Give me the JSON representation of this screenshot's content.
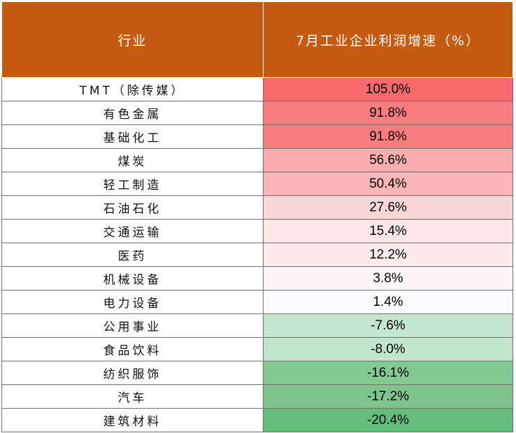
{
  "table": {
    "headers": [
      "行业",
      "7月工业企业利润增速（%）"
    ],
    "rows": [
      {
        "industry": "TMT（除传媒）",
        "value": "105.0%",
        "color": "#f8696b"
      },
      {
        "industry": "有色金属",
        "value": "91.8%",
        "color": "#f97c7f"
      },
      {
        "industry": "基础化工",
        "value": "91.8%",
        "color": "#f97c7f"
      },
      {
        "industry": "煤炭",
        "value": "56.6%",
        "color": "#faadaf"
      },
      {
        "industry": "轻工制造",
        "value": "50.4%",
        "color": "#fbb5b7"
      },
      {
        "industry": "石油石化",
        "value": "27.6%",
        "color": "#fcd5d6"
      },
      {
        "industry": "交通运输",
        "value": "15.4%",
        "color": "#fde6e7"
      },
      {
        "industry": "医药",
        "value": "12.2%",
        "color": "#fdeaeb"
      },
      {
        "industry": "机械设备",
        "value": "3.8%",
        "color": "#fcf6f9"
      },
      {
        "industry": "电力设备",
        "value": "1.4%",
        "color": "#fcfcff"
      },
      {
        "industry": "公用事业",
        "value": "-7.6%",
        "color": "#c5e6ce"
      },
      {
        "industry": "食品饮料",
        "value": "-8.0%",
        "color": "#c3e5cb"
      },
      {
        "industry": "纺织服饰",
        "value": "-16.1%",
        "color": "#83c994"
      },
      {
        "industry": "汽车",
        "value": "-17.2%",
        "color": "#7cc68e"
      },
      {
        "industry": "建筑材料",
        "value": "-20.4%",
        "color": "#63be7b"
      }
    ]
  }
}
